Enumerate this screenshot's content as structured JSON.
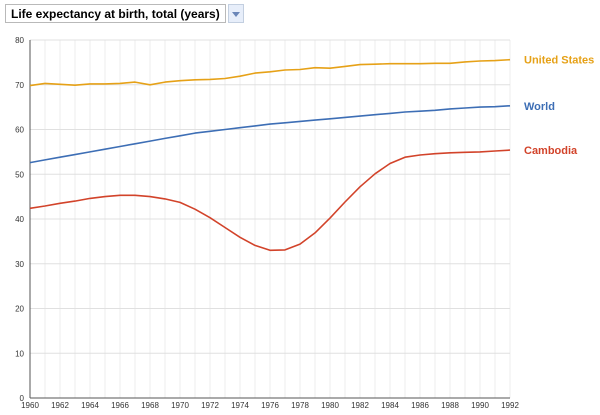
{
  "selector": {
    "label": "Life expectancy at birth, total (years)"
  },
  "chart_data": {
    "type": "line",
    "x": [
      1960,
      1961,
      1962,
      1963,
      1964,
      1965,
      1966,
      1967,
      1968,
      1969,
      1970,
      1971,
      1972,
      1973,
      1974,
      1975,
      1976,
      1977,
      1978,
      1979,
      1980,
      1981,
      1982,
      1983,
      1984,
      1985,
      1986,
      1987,
      1988,
      1989,
      1990,
      1991,
      1992
    ],
    "xlim": [
      1960,
      1992
    ],
    "ylim": [
      0,
      80
    ],
    "xticks": [
      1960,
      1962,
      1964,
      1966,
      1968,
      1970,
      1972,
      1974,
      1976,
      1978,
      1980,
      1982,
      1984,
      1986,
      1988,
      1990,
      1992
    ],
    "yticks": [
      0,
      10,
      20,
      30,
      40,
      50,
      60,
      70,
      80
    ],
    "grid": true,
    "legend": "right-end-labels",
    "series": [
      {
        "name": "United States",
        "color": "#e6a117",
        "values": [
          69.8,
          70.3,
          70.1,
          69.9,
          70.2,
          70.2,
          70.3,
          70.6,
          70.0,
          70.6,
          70.9,
          71.1,
          71.2,
          71.4,
          71.9,
          72.6,
          72.9,
          73.3,
          73.4,
          73.8,
          73.7,
          74.1,
          74.5,
          74.6,
          74.7,
          74.7,
          74.7,
          74.8,
          74.8,
          75.1,
          75.3,
          75.4,
          75.6
        ]
      },
      {
        "name": "World",
        "color": "#3d6eb5",
        "values": [
          52.6,
          53.2,
          53.8,
          54.4,
          55.0,
          55.6,
          56.2,
          56.8,
          57.4,
          58.0,
          58.6,
          59.2,
          59.6,
          60.0,
          60.4,
          60.8,
          61.2,
          61.5,
          61.8,
          62.1,
          62.4,
          62.7,
          63.0,
          63.3,
          63.6,
          63.9,
          64.1,
          64.3,
          64.6,
          64.8,
          65.0,
          65.1,
          65.3
        ]
      },
      {
        "name": "Cambodia",
        "color": "#d2432a",
        "values": [
          42.4,
          42.9,
          43.5,
          44.0,
          44.6,
          45.0,
          45.3,
          45.3,
          45.0,
          44.5,
          43.7,
          42.2,
          40.3,
          38.1,
          35.9,
          34.1,
          33.0,
          33.1,
          34.4,
          36.9,
          40.2,
          43.8,
          47.2,
          50.1,
          52.4,
          53.8,
          54.3,
          54.6,
          54.8,
          54.9,
          55.0,
          55.2,
          55.4
        ]
      }
    ]
  }
}
